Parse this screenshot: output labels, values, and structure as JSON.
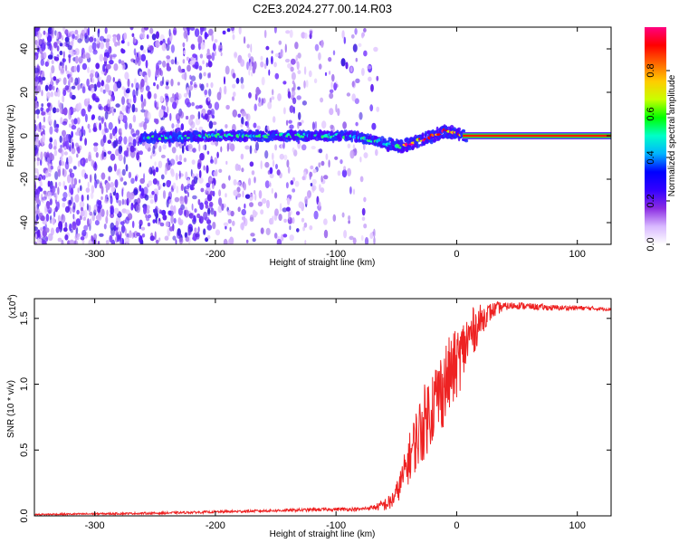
{
  "title": "C2E3.2024.277.00.14.R03",
  "chart_data": [
    {
      "type": "heatmap",
      "title": "C2E3.2024.277.00.14.R03",
      "xlabel": "Height of straight line (km)",
      "ylabel": "Frequency (Hz)",
      "xlim": [
        -350,
        128
      ],
      "ylim": [
        -50,
        50
      ],
      "x_ticks": [
        -300,
        -200,
        -100,
        0,
        100
      ],
      "x_tick_labels": [
        "-300",
        "-200",
        "-100",
        "0",
        "100"
      ],
      "y_ticks": [
        -40,
        -20,
        0,
        20,
        40
      ],
      "y_tick_labels": [
        "-40",
        "-20",
        "0",
        "20",
        "40"
      ],
      "colorbar": {
        "label": "Normalized spectral amplitude",
        "range": [
          0,
          1
        ],
        "ticks": [
          0.0,
          0.2,
          0.4,
          0.6,
          0.8
        ],
        "tick_labels": [
          "0.0",
          "0.2",
          "0.4",
          "0.6",
          "0.8"
        ],
        "colors": [
          "#ffffff",
          "#d8b8ff",
          "#8a2be2",
          "#3300ff",
          "#0000ff",
          "#00b4ff",
          "#00ffc8",
          "#00ff00",
          "#c8ff00",
          "#ffcc00",
          "#ff6600",
          "#ff0000",
          "#ff0080"
        ]
      },
      "ridge": [
        {
          "x": -260,
          "f": -1
        },
        {
          "x": -200,
          "f": 0
        },
        {
          "x": -150,
          "f": 0
        },
        {
          "x": -110,
          "f": 0
        },
        {
          "x": -90,
          "f": 0
        },
        {
          "x": -70,
          "f": -2
        },
        {
          "x": -55,
          "f": -4
        },
        {
          "x": -45,
          "f": -5
        },
        {
          "x": -35,
          "f": -3
        },
        {
          "x": -20,
          "f": 0
        },
        {
          "x": -10,
          "f": 2
        },
        {
          "x": 0,
          "f": 1
        },
        {
          "x": 10,
          "f": 0
        },
        {
          "x": 128,
          "f": 0
        }
      ],
      "noise_extent_x": [
        -350,
        -75
      ]
    },
    {
      "type": "line",
      "xlabel": "Height of straight line (km)",
      "ylabel": "SNR (10 * v/v)",
      "y_scale_label": "(x10",
      "y_scale_exponent": "4",
      "xlim": [
        -350,
        128
      ],
      "ylim": [
        0,
        1.65
      ],
      "x_ticks": [
        -300,
        -200,
        -100,
        0,
        100
      ],
      "x_tick_labels": [
        "-300",
        "-200",
        "-100",
        "0",
        "100"
      ],
      "y_ticks": [
        0.0,
        0.5,
        1.0,
        1.5
      ],
      "y_tick_labels": [
        "0.0",
        "0.5",
        "1.0",
        "1.5"
      ],
      "line_color": "#ee2222",
      "series": [
        {
          "name": "SNR",
          "x": [
            -350,
            -300,
            -250,
            -200,
            -150,
            -100,
            -80,
            -65,
            -55,
            -50,
            -45,
            -40,
            -35,
            -30,
            -25,
            -20,
            -15,
            -10,
            -5,
            0,
            5,
            10,
            15,
            20,
            25,
            30,
            35,
            40,
            50,
            60,
            80,
            100,
            128
          ],
          "y": [
            0.01,
            0.015,
            0.02,
            0.03,
            0.04,
            0.05,
            0.05,
            0.07,
            0.1,
            0.17,
            0.28,
            0.42,
            0.55,
            0.65,
            0.75,
            0.85,
            0.92,
            1.0,
            1.08,
            1.15,
            1.25,
            1.35,
            1.42,
            1.48,
            1.53,
            1.56,
            1.58,
            1.59,
            1.6,
            1.59,
            1.58,
            1.58,
            1.57
          ]
        }
      ],
      "noise_amplitude": [
        {
          "x": -350,
          "a": 0.006
        },
        {
          "x": -150,
          "a": 0.01
        },
        {
          "x": -70,
          "a": 0.015
        },
        {
          "x": -50,
          "a": 0.08
        },
        {
          "x": -30,
          "a": 0.28
        },
        {
          "x": -10,
          "a": 0.32
        },
        {
          "x": 10,
          "a": 0.22
        },
        {
          "x": 25,
          "a": 0.08
        },
        {
          "x": 40,
          "a": 0.03
        },
        {
          "x": 128,
          "a": 0.012
        }
      ]
    }
  ]
}
